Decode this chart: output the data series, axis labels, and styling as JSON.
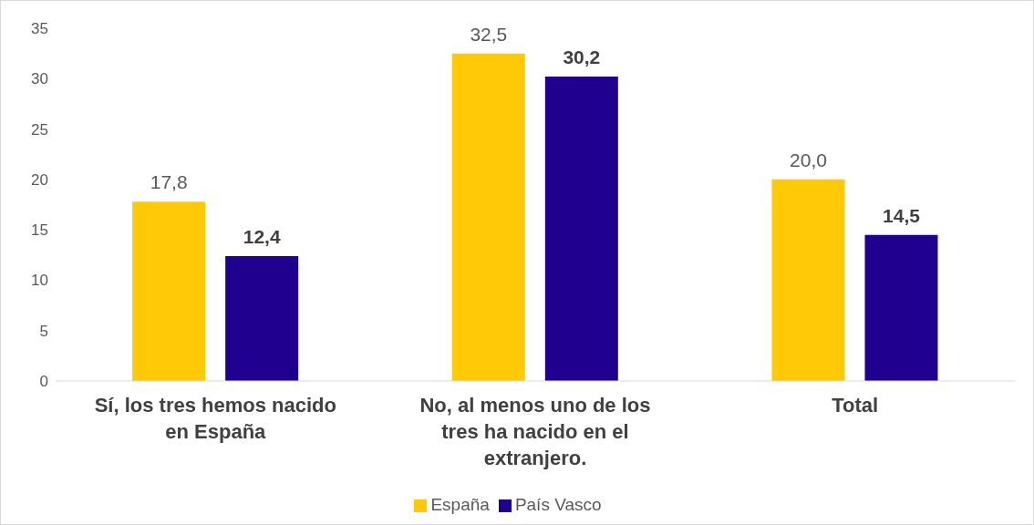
{
  "chart_data": {
    "type": "bar",
    "categories": [
      "Sí, los tres hemos nacido en España",
      "No, al menos uno de los tres ha nacido en el extranjero.",
      "Total"
    ],
    "series": [
      {
        "name": "España",
        "color": "#ffc907",
        "values": [
          17.8,
          32.5,
          20.0
        ],
        "value_labels": [
          "17,8",
          "32,5",
          "20,0"
        ]
      },
      {
        "name": "País Vasco",
        "color": "#1f008f",
        "values": [
          12.4,
          30.2,
          14.5
        ],
        "value_labels": [
          "12,4",
          "30,2",
          "14,5"
        ]
      }
    ],
    "ylim": [
      0,
      35
    ],
    "yticks": [
      0,
      5,
      10,
      15,
      20,
      25,
      30,
      35
    ],
    "grid": false,
    "legend": "bottom"
  }
}
